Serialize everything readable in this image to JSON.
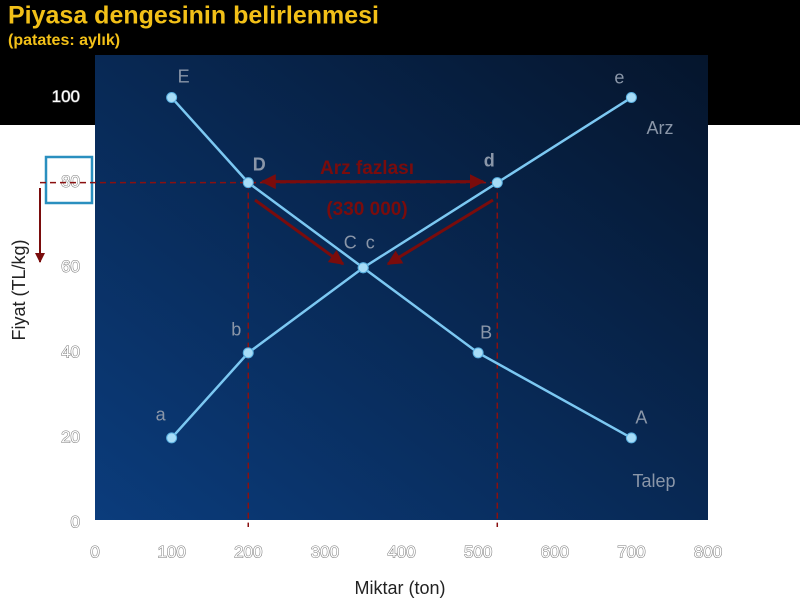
{
  "title": "Piyasa dengesinin belirlenmesi",
  "subtitle": "(patates: aylık)",
  "chart_data": {
    "type": "line",
    "xlabel": "Miktar (ton)",
    "ylabel": "Fiyat (TL/kg)",
    "xlim": [
      0,
      800
    ],
    "ylim": [
      0,
      110
    ],
    "xticks": [
      0,
      100,
      200,
      300,
      400,
      500,
      600,
      700,
      800
    ],
    "yticks": [
      0,
      20,
      40,
      60,
      80,
      100
    ],
    "series": [
      {
        "name": "Talep",
        "color": "#7cc8f2",
        "x": [
          100,
          200,
          350,
          500,
          700
        ],
        "values": [
          100,
          80,
          60,
          40,
          20
        ],
        "point_labels": [
          "E",
          "D",
          "C",
          "B",
          "A"
        ]
      },
      {
        "name": "Arz",
        "color": "#7cc8f2",
        "x": [
          100,
          200,
          350,
          525,
          700
        ],
        "values": [
          20,
          40,
          60,
          80,
          100
        ],
        "point_labels": [
          "a",
          "b",
          "c",
          "d",
          "e"
        ]
      }
    ],
    "surplus": {
      "price": 80,
      "from": 200,
      "to": 525,
      "label": "Arz fazlası",
      "amount_label": "(330 000)"
    }
  }
}
